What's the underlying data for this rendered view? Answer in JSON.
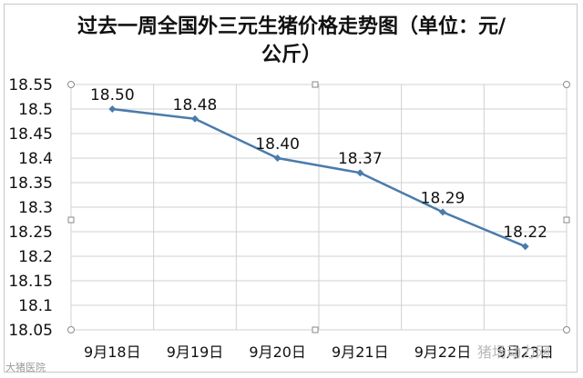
{
  "chart_data": {
    "type": "line",
    "title": "过去一周全国外三元生猪价格走势图（单位：元/公斤）",
    "title_lines": [
      "过去一周全国外三元生猪价格走势图（单位：元/",
      "公斤）"
    ],
    "categories": [
      "9月18日",
      "9月19日",
      "9月20日",
      "9月21日",
      "9月22日",
      "9月23日"
    ],
    "series": [
      {
        "values": [
          18.5,
          18.48,
          18.4,
          18.37,
          18.29,
          18.22
        ]
      }
    ],
    "data_labels": [
      "18.50",
      "18.48",
      "18.40",
      "18.37",
      "18.29",
      "18.22"
    ],
    "y_ticks": [
      "18.55",
      "18.5",
      "18.45",
      "18.4",
      "18.35",
      "18.3",
      "18.25",
      "18.2",
      "18.15",
      "18.1",
      "18.05"
    ],
    "ylim": [
      18.05,
      18.55
    ],
    "grid": true,
    "legend": "none",
    "colors": {
      "line": "#4a7bab",
      "grid": "#d0d0d0",
      "text": "#111111"
    }
  },
  "watermarks": {
    "left": "大猪医院",
    "right": "猪场动力网"
  }
}
